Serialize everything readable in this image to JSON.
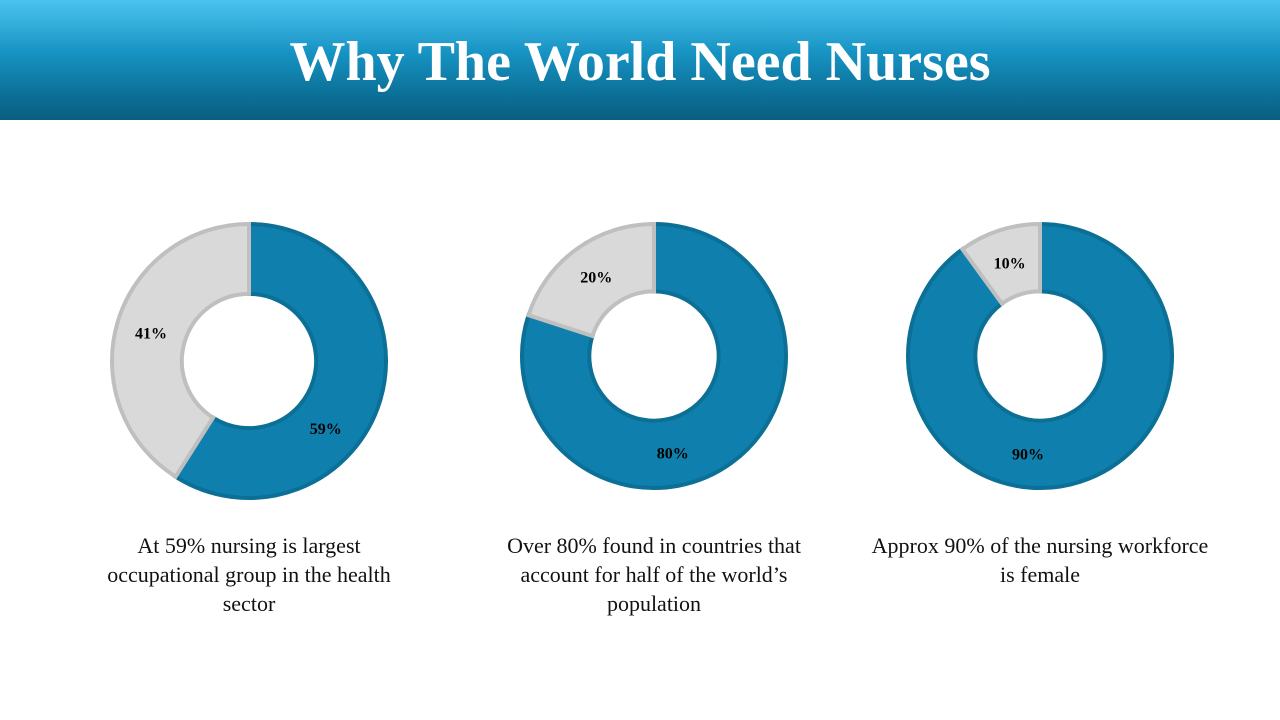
{
  "title": "Why The World Need Nurses",
  "colors": {
    "primary": "#0f80ad",
    "primary_stroke": "#0b6f96",
    "rest": "#d9d9d9",
    "rest_stroke": "#bfbfbf"
  },
  "chart_data": [
    {
      "type": "pie",
      "values": [
        59,
        41
      ],
      "labels": [
        "59%",
        "41%"
      ],
      "caption": "At 59% nursing is largest occupational group in the health sector"
    },
    {
      "type": "pie",
      "values": [
        80,
        20
      ],
      "labels": [
        "80%",
        "20%"
      ],
      "caption": "Over 80% found in countries that account for half of the world’s population"
    },
    {
      "type": "pie",
      "values": [
        90,
        10
      ],
      "labels": [
        "90%",
        "10%"
      ],
      "caption": "Approx 90% of the nursing workforce is female"
    }
  ]
}
